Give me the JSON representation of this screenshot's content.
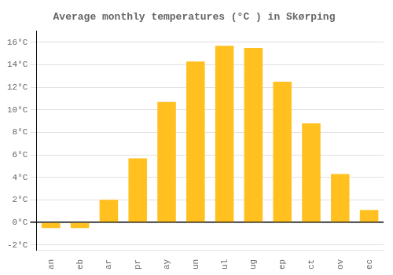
{
  "chart_data": {
    "type": "bar",
    "title": "Average monthly temperatures (°C ) in Skørping",
    "categories": [
      "an",
      "eb",
      "ar",
      "pr",
      "ay",
      "un",
      "ul",
      "ug",
      "ep",
      "ct",
      "ov",
      "ec"
    ],
    "values": [
      -0.5,
      -0.5,
      2.0,
      5.7,
      10.7,
      14.3,
      15.7,
      15.5,
      12.5,
      8.8,
      4.3,
      1.1
    ],
    "color": "#FFC020",
    "ylim": [
      -2.5,
      17
    ],
    "yticks": [
      {
        "value": -2,
        "label": "-2°C"
      },
      {
        "value": 0,
        "label": "0°C"
      },
      {
        "value": 2,
        "label": "2°C"
      },
      {
        "value": 4,
        "label": "4°C"
      },
      {
        "value": 6,
        "label": "6°C"
      },
      {
        "value": 8,
        "label": "8°C"
      },
      {
        "value": 10,
        "label": "10°C"
      },
      {
        "value": 12,
        "label": "12°C"
      },
      {
        "value": 14,
        "label": "14°C"
      },
      {
        "value": 16,
        "label": "16°C"
      }
    ],
    "grid": true
  }
}
